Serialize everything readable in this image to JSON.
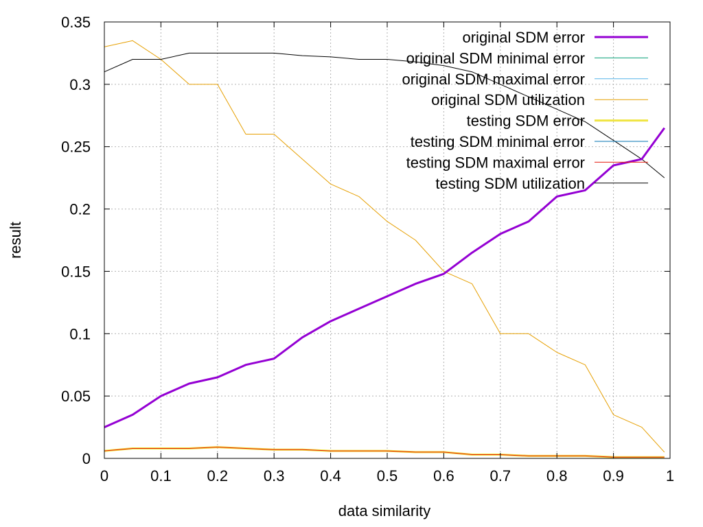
{
  "chart_data": {
    "type": "line",
    "title": "",
    "xlabel": "data similarity",
    "ylabel": "result",
    "xlim": [
      0,
      1
    ],
    "ylim": [
      0,
      0.35
    ],
    "x_ticks": [
      0,
      0.1,
      0.2,
      0.3,
      0.4,
      0.5,
      0.6,
      0.7,
      0.8,
      0.9,
      1
    ],
    "x_tick_labels": [
      "0",
      "0.1",
      "0.2",
      "0.3",
      "0.4",
      "0.5",
      "0.6",
      "0.7",
      "0.8",
      "0.9",
      "1"
    ],
    "y_ticks": [
      0,
      0.05,
      0.1,
      0.15,
      0.2,
      0.25,
      0.3,
      0.35
    ],
    "y_tick_labels": [
      "0",
      "0.05",
      "0.1",
      "0.15",
      "0.2",
      "0.25",
      "0.3",
      "0.35"
    ],
    "grid": true,
    "legend_position": "top-right",
    "x": [
      0,
      0.05,
      0.1,
      0.15,
      0.2,
      0.25,
      0.3,
      0.35,
      0.4,
      0.45,
      0.5,
      0.55,
      0.6,
      0.65,
      0.7,
      0.75,
      0.8,
      0.85,
      0.9,
      0.95,
      0.99
    ],
    "series": [
      {
        "name": "original SDM error",
        "color": "#9400d3",
        "width": 3,
        "values": [
          0.025,
          0.035,
          0.05,
          0.06,
          0.065,
          0.075,
          0.08,
          0.097,
          0.11,
          0.12,
          0.13,
          0.14,
          0.148,
          0.165,
          0.18,
          0.19,
          0.21,
          0.215,
          0.235,
          0.24,
          0.265
        ]
      },
      {
        "name": "original SDM minimal error",
        "color": "#009e73",
        "width": 1,
        "values": [
          0,
          0,
          0,
          0,
          0,
          0,
          0,
          0,
          0,
          0,
          0,
          0,
          0,
          0,
          0,
          0,
          0,
          0,
          0,
          0,
          0
        ]
      },
      {
        "name": "original SDM maximal error",
        "color": "#56b4e9",
        "width": 1,
        "values": [
          0,
          0,
          0,
          0,
          0,
          0,
          0,
          0,
          0,
          0,
          0,
          0,
          0,
          0,
          0,
          0,
          0,
          0,
          0,
          0,
          0
        ]
      },
      {
        "name": "original SDM utilization",
        "color": "#e69f00",
        "width": 1,
        "values": [
          0.33,
          0.335,
          0.32,
          0.3,
          0.3,
          0.26,
          0.26,
          0.24,
          0.22,
          0.21,
          0.19,
          0.175,
          0.15,
          0.14,
          0.1,
          0.1,
          0.085,
          0.075,
          0.035,
          0.025,
          0.005
        ]
      },
      {
        "name": "testing SDM error",
        "color": "#f0e442",
        "width": 3,
        "values": [
          0.006,
          0.008,
          0.008,
          0.008,
          0.009,
          0.008,
          0.007,
          0.007,
          0.006,
          0.006,
          0.006,
          0.005,
          0.005,
          0.003,
          0.003,
          0.002,
          0.002,
          0.002,
          0.001,
          0.001,
          0.001
        ]
      },
      {
        "name": "testing SDM minimal error",
        "color": "#0072b2",
        "width": 1,
        "values": [
          0,
          0,
          0,
          0,
          0,
          0,
          0,
          0,
          0,
          0,
          0,
          0,
          0,
          0,
          0,
          0,
          0,
          0,
          0,
          0,
          0
        ]
      },
      {
        "name": "testing SDM maximal error",
        "color": "#e51e10",
        "width": 1,
        "values": [
          0.006,
          0.008,
          0.008,
          0.008,
          0.009,
          0.008,
          0.007,
          0.007,
          0.006,
          0.006,
          0.006,
          0.005,
          0.005,
          0.003,
          0.003,
          0.002,
          0.002,
          0.002,
          0.001,
          0.001,
          0.001
        ]
      },
      {
        "name": "testing SDM utilization",
        "color": "#000000",
        "width": 1,
        "values": [
          0.31,
          0.32,
          0.32,
          0.325,
          0.325,
          0.325,
          0.325,
          0.323,
          0.322,
          0.32,
          0.32,
          0.318,
          0.315,
          0.31,
          0.3,
          0.29,
          0.28,
          0.27,
          0.255,
          0.24,
          0.225
        ]
      }
    ]
  }
}
